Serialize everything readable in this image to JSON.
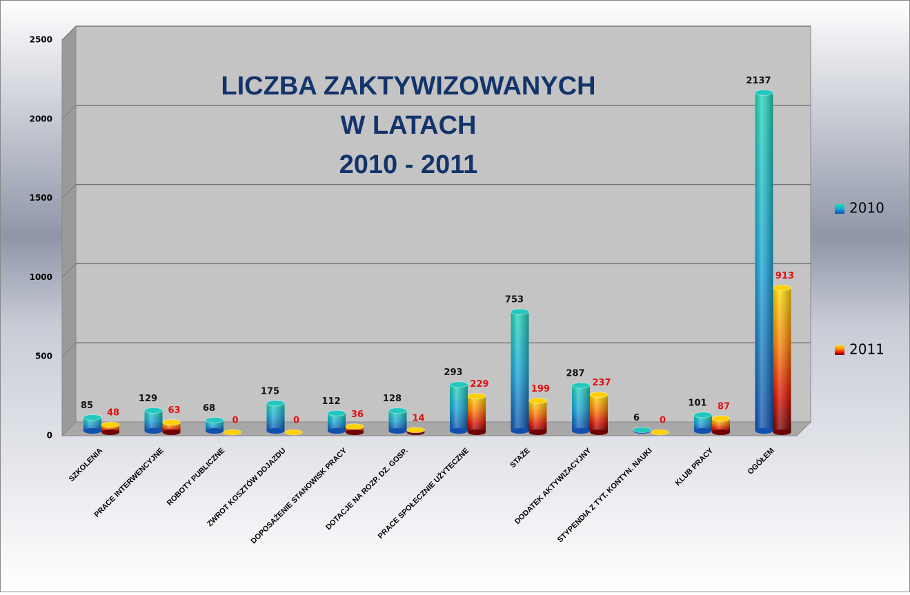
{
  "chart_data": {
    "type": "bar3d",
    "title": [
      "LICZBA ZAKTYWIZOWANYCH",
      "W LATACH",
      "2010 - 2011"
    ],
    "categories": [
      "SZKOLENIA",
      "PRACE INTERWENCYJNE",
      "ROBOTY PUBLICZNE",
      "ZWROT KOSZTÓW DOJAZDU",
      "DOPOSAŻENIE STANOWISK PRACY",
      "DOTACJE NA ROZP. DZ. GOSP.",
      "PRACE SPOŁECZNIE UŻYTECZNE",
      "STAŻE",
      "DODATEK AKTYWIZACYJNY",
      "STYPENDIA Z TYT. KONTYN. NAUKI",
      "KLUB PRACY",
      "OGÓŁEM"
    ],
    "series": [
      {
        "name": "2010",
        "color": "#1aa8d0",
        "values": [
          85,
          129,
          68,
          175,
          112,
          128,
          293,
          753,
          287,
          6,
          101,
          2137
        ]
      },
      {
        "name": "2011",
        "color": "#f08000",
        "values": [
          48,
          63,
          0,
          0,
          36,
          14,
          229,
          199,
          237,
          0,
          87,
          913
        ]
      }
    ],
    "ylim": [
      0,
      2500
    ],
    "yticks": [
      0,
      500,
      1000,
      1500,
      2000,
      2500
    ],
    "grid": true,
    "legend": "right"
  }
}
